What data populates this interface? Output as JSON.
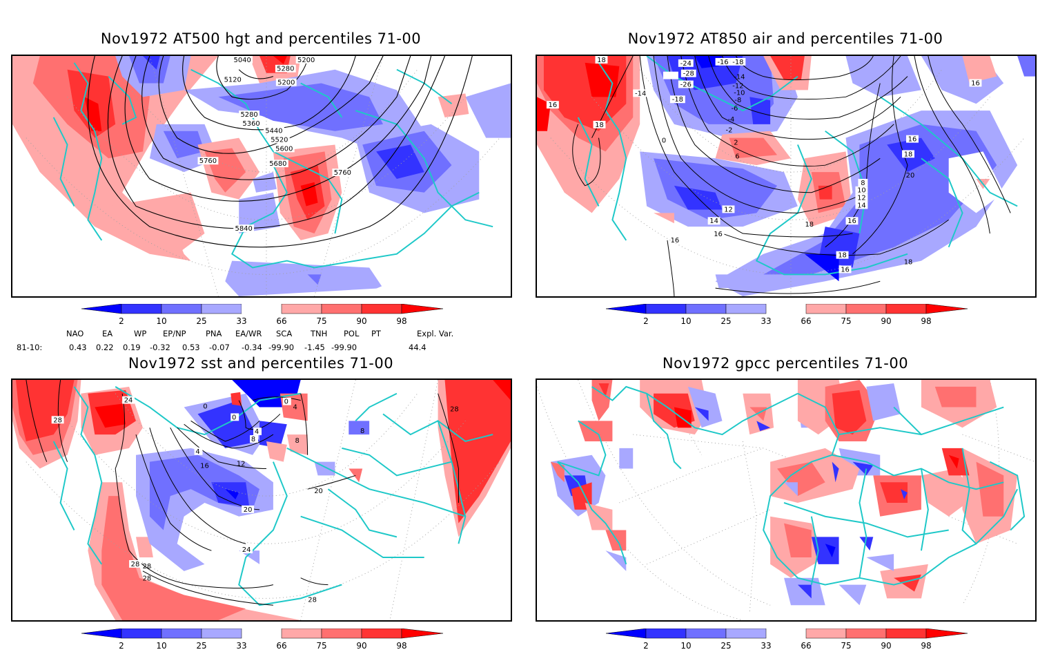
{
  "panels": [
    {
      "id": "hgt500",
      "title": "Nov1972 AT500 hgt and percentiles 71-00",
      "contour_labels": [
        "5040",
        "5200",
        "5280",
        "5120",
        "5200",
        "5280",
        "5360",
        "5440",
        "5520",
        "5600",
        "5760",
        "5680",
        "5760",
        "5840"
      ]
    },
    {
      "id": "air850",
      "title": "Nov1972 AT850 air and percentiles 71-00",
      "contour_labels": [
        "18",
        "16",
        "18",
        "16",
        "-24",
        "-28",
        "-26",
        "-18",
        "-14",
        "-16",
        "-18",
        "-14",
        "-12",
        "-10",
        "-8",
        "-6",
        "-4",
        "-2",
        "0",
        "2",
        "6",
        "16",
        "18",
        "20",
        "8",
        "10",
        "12",
        "14",
        "16",
        "12",
        "14",
        "16",
        "16",
        "18",
        "18",
        "16",
        "18"
      ]
    },
    {
      "id": "sst",
      "title": "Nov1972 sst and percentiles 71-00",
      "contour_labels": [
        "28",
        "24",
        "0",
        "0",
        "0",
        "4",
        "4",
        "8",
        "8",
        "4",
        "12",
        "16",
        "20",
        "20",
        "24",
        "28",
        "28",
        "28",
        "28",
        "28",
        "8"
      ]
    },
    {
      "id": "gpcc",
      "title": "Nov1972 gpcc percentiles 71-00",
      "contour_labels": []
    }
  ],
  "colorbar": {
    "ticks": [
      "2",
      "10",
      "25",
      "33",
      "66",
      "75",
      "90",
      "98"
    ],
    "colors": {
      "lt2": "#0000ff",
      "c2_10": "#3333ff",
      "c10_25": "#7070ff",
      "c25_33": "#a8a8ff",
      "c33_66": "#ffffff",
      "c66_75": "#ffa8a8",
      "c75_90": "#ff7070",
      "c90_98": "#ff3333",
      "gt98": "#ff0000"
    }
  },
  "indices": {
    "headers": [
      "NAO",
      "EA",
      "WP",
      "EP/NP",
      "PNA",
      "EA/WR",
      "SCA",
      "TNH",
      "POL",
      "PT",
      "Expl. Var."
    ],
    "row_label": "81-10:",
    "values": [
      "0.43",
      "0.22",
      "0.19",
      "-0.32",
      "0.53",
      "-0.07",
      "-0.34",
      "-99.90",
      "-1.45",
      "-99.90",
      "44.4"
    ]
  },
  "colors": {
    "coastline": "#1ec8c8",
    "contour": "#000000",
    "grid": "#a0a0a0"
  }
}
